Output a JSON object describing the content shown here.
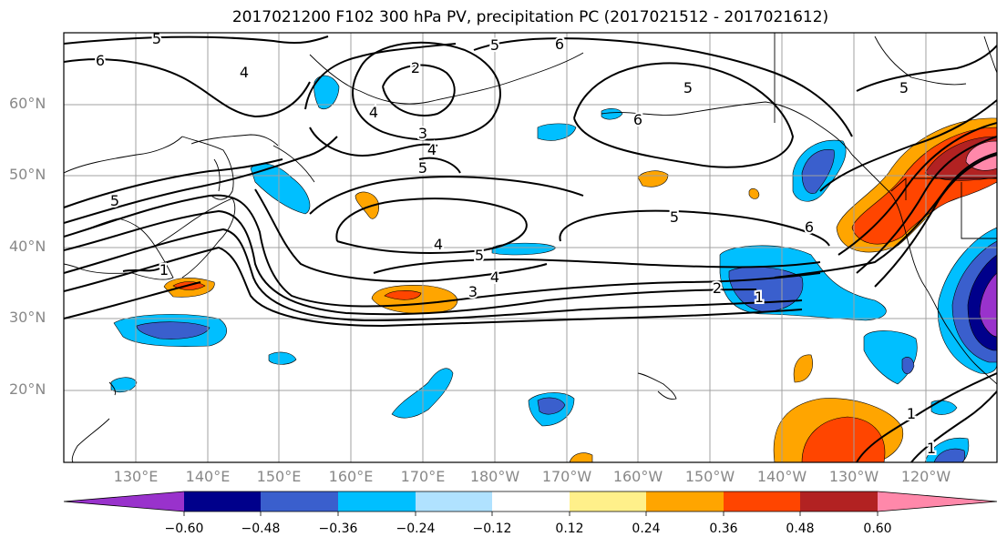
{
  "title": "2017021200 F102 300 hPa PV, precipitation PC (2017021512 - 2017021612)",
  "map": {
    "lat_labels": [
      "60°N",
      "50°N",
      "40°N",
      "30°N",
      "20°N"
    ],
    "lon_labels": [
      "130°E",
      "140°E",
      "150°E",
      "160°E",
      "170°E",
      "180°W",
      "170°W",
      "160°W",
      "150°W",
      "140°W",
      "130°W",
      "120°W"
    ],
    "contour_labels": [
      "5",
      "6",
      "2",
      "3",
      "4",
      "5",
      "6",
      "5",
      "4",
      "5",
      "4",
      "5",
      "3",
      "4",
      "5",
      "1",
      "2",
      "1",
      "6",
      "5",
      "4",
      "6",
      "5",
      "1",
      "1"
    ]
  },
  "colorbar": {
    "tick_labels": [
      "−0.60",
      "−0.48",
      "−0.36",
      "−0.24",
      "−0.12",
      "0.12",
      "0.24",
      "0.36",
      "0.48",
      "0.60"
    ],
    "colors": [
      "#9932cc",
      "#00008b",
      "#3a5fcd",
      "#00bfff",
      "#b0e2ff",
      "#ffffff",
      "#fff08a",
      "#ffa500",
      "#ff4500",
      "#b22222",
      "#ff88aa"
    ]
  }
}
